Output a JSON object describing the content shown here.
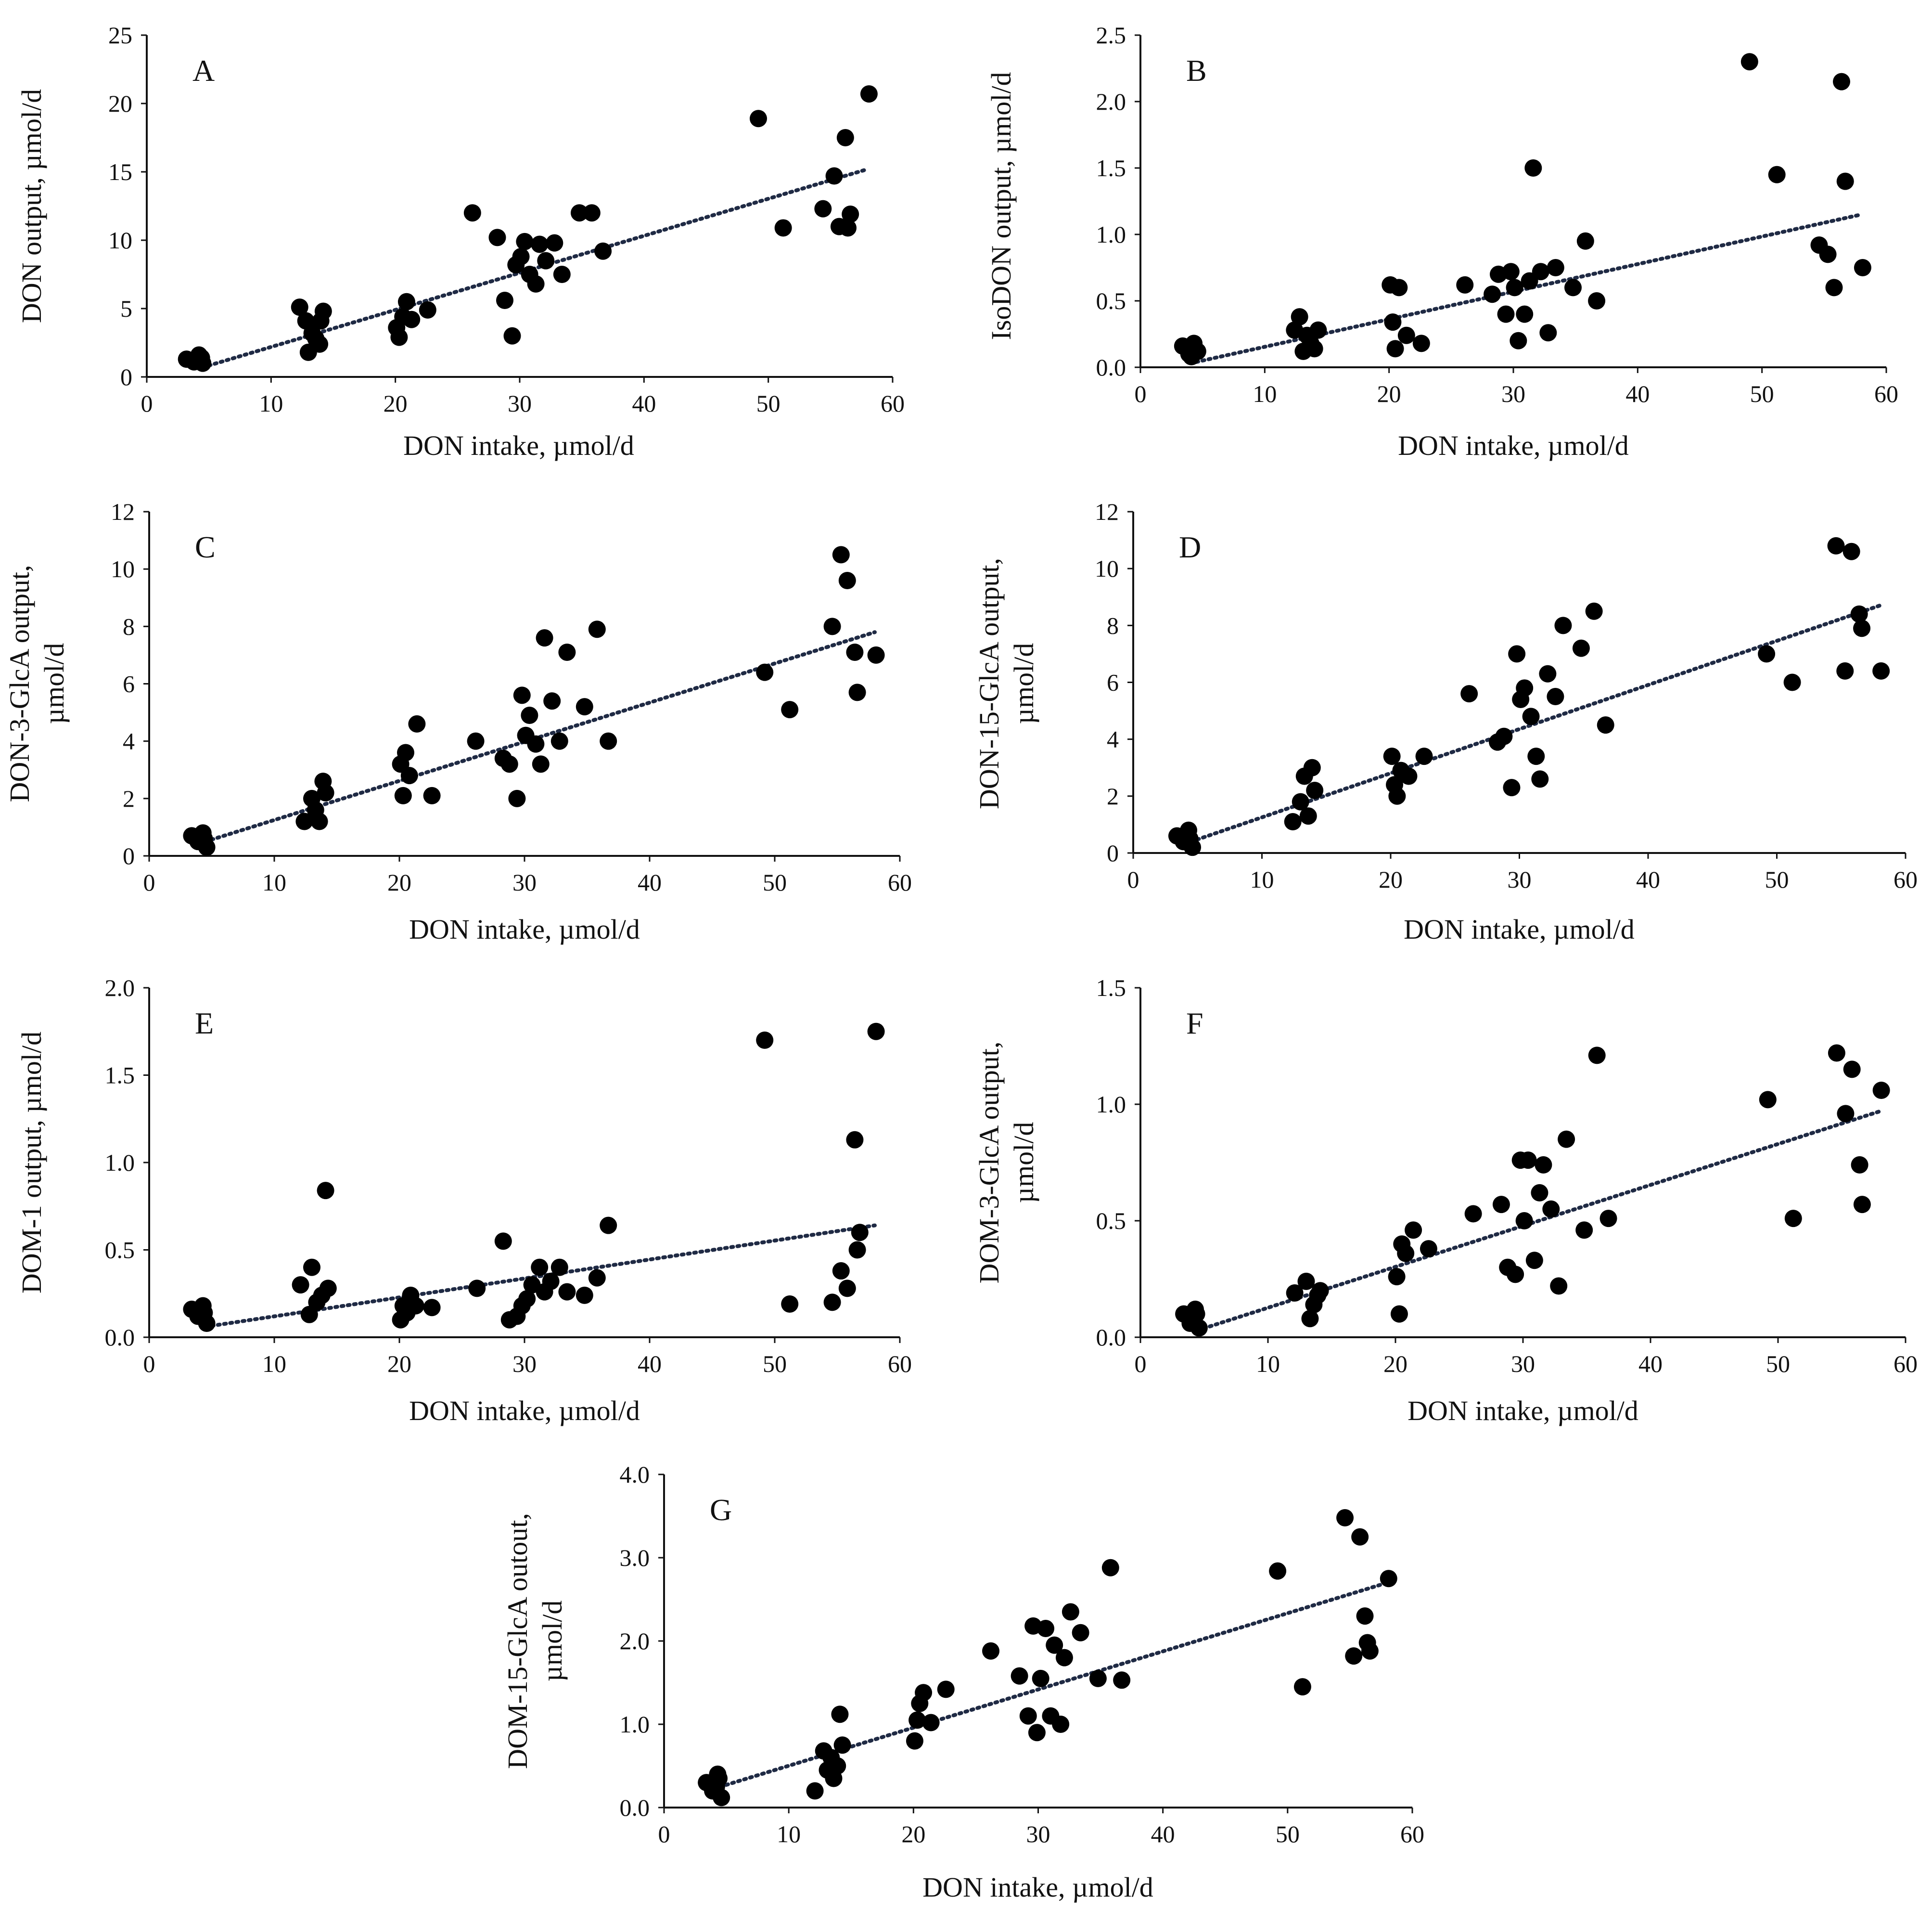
{
  "chart_data": [
    {
      "panel": "A",
      "type": "scatter",
      "xlabel": "DON intake, µmol/d",
      "ylabel": "DON output, µmol/d",
      "xlim": [
        0,
        60
      ],
      "ylim": [
        0,
        25
      ],
      "xticks": [
        "0",
        "10",
        "20",
        "30",
        "40",
        "50",
        "60"
      ],
      "yticks": [
        "0",
        "5",
        "10",
        "15",
        "20",
        "25"
      ],
      "trend": [
        [
          4.5,
          0.7
        ],
        [
          58,
          15.2
        ]
      ],
      "x": [
        3.2,
        3.8,
        4.2,
        4.5,
        4.4,
        4.0,
        12.3,
        12.8,
        13.0,
        13.3,
        13.6,
        13.9,
        14.0,
        14.2,
        20.1,
        20.3,
        20.6,
        20.9,
        21.3,
        22.6,
        26.2,
        28.2,
        28.8,
        29.4,
        29.7,
        30.1,
        30.4,
        30.8,
        31.3,
        31.6,
        32.1,
        32.8,
        33.4,
        34.8,
        35.8,
        36.7,
        49.2,
        51.2,
        54.4,
        55.3,
        55.7,
        56.2,
        56.6,
        56.4,
        58.1
      ],
      "y": [
        1.3,
        1.1,
        1.6,
        1.0,
        1.4,
        1.2,
        5.1,
        4.1,
        1.8,
        3.2,
        2.8,
        2.4,
        4.1,
        4.8,
        3.6,
        2.9,
        4.4,
        5.5,
        4.2,
        4.9,
        12.0,
        10.2,
        5.6,
        3.0,
        8.2,
        8.8,
        9.9,
        7.5,
        6.8,
        9.7,
        8.5,
        9.8,
        7.5,
        12.0,
        12.0,
        9.2,
        18.9,
        10.9,
        12.3,
        14.7,
        11.0,
        17.5,
        11.9,
        10.9,
        20.7
      ]
    },
    {
      "panel": "B",
      "type": "scatter",
      "xlabel": "DON intake, µmol/d",
      "ylabel": "IsoDON output, µmol/d",
      "xlim": [
        0,
        60
      ],
      "ylim": [
        0,
        2.5
      ],
      "xticks": [
        "0",
        "10",
        "20",
        "30",
        "40",
        "50",
        "60"
      ],
      "yticks": [
        "0.0",
        "0.5",
        "1.0",
        "1.5",
        "2.0",
        "2.5"
      ],
      "trend": [
        [
          4.5,
          0.04
        ],
        [
          58,
          1.15
        ]
      ],
      "x": [
        3.4,
        3.9,
        4.3,
        4.6,
        4.4,
        4.1,
        12.4,
        12.8,
        13.1,
        13.4,
        13.7,
        14.0,
        14.3,
        20.1,
        20.3,
        20.5,
        20.8,
        21.4,
        22.6,
        26.1,
        28.3,
        28.8,
        29.4,
        29.8,
        30.1,
        30.4,
        30.9,
        31.3,
        31.6,
        32.2,
        32.8,
        33.4,
        34.8,
        35.8,
        36.7,
        49.0,
        51.2,
        54.6,
        55.3,
        55.8,
        56.4,
        56.7,
        58.1
      ],
      "y": [
        0.16,
        0.1,
        0.18,
        0.12,
        0.14,
        0.08,
        0.28,
        0.38,
        0.12,
        0.24,
        0.18,
        0.14,
        0.28,
        0.62,
        0.34,
        0.14,
        0.6,
        0.24,
        0.18,
        0.62,
        0.55,
        0.7,
        0.4,
        0.72,
        0.6,
        0.2,
        0.4,
        0.65,
        1.5,
        0.72,
        0.26,
        0.75,
        0.6,
        0.95,
        0.5,
        2.3,
        1.45,
        0.92,
        0.85,
        0.6,
        2.15,
        1.4,
        0.75
      ]
    },
    {
      "panel": "C",
      "type": "scatter",
      "xlabel": "DON intake, µmol/d",
      "ylabel": "DON-3-GlcA output, µmol/d",
      "xlim": [
        0,
        60
      ],
      "ylim": [
        0,
        12
      ],
      "xticks": [
        "0",
        "10",
        "20",
        "30",
        "40",
        "50",
        "60"
      ],
      "yticks": [
        "0",
        "2",
        "4",
        "6",
        "8",
        "10",
        "12"
      ],
      "trend": [
        [
          4.5,
          0.5
        ],
        [
          58,
          7.8
        ]
      ],
      "x": [
        3.4,
        3.9,
        4.3,
        4.6,
        4.4,
        12.4,
        13.0,
        13.3,
        13.6,
        13.9,
        14.1,
        20.1,
        20.3,
        20.5,
        20.8,
        21.4,
        22.6,
        26.1,
        28.3,
        28.8,
        29.4,
        29.8,
        30.1,
        30.4,
        30.9,
        31.3,
        31.6,
        32.2,
        32.8,
        33.4,
        34.8,
        35.8,
        36.7,
        49.2,
        51.2,
        54.6,
        55.3,
        55.8,
        56.4,
        56.6,
        58.1
      ],
      "y": [
        0.7,
        0.5,
        0.8,
        0.3,
        0.6,
        1.2,
        2.0,
        1.6,
        1.2,
        2.6,
        2.2,
        3.2,
        2.1,
        3.6,
        2.8,
        4.6,
        2.1,
        4.0,
        3.4,
        3.2,
        2.0,
        5.6,
        4.2,
        4.9,
        3.9,
        3.2,
        7.6,
        5.4,
        4.0,
        7.1,
        5.2,
        7.9,
        4.0,
        6.4,
        5.1,
        8.0,
        10.5,
        9.6,
        7.1,
        5.7,
        7.0
      ]
    },
    {
      "panel": "D",
      "type": "scatter",
      "xlabel": "DON intake, µmol/d",
      "ylabel": "DON-15-GlcA output, µmol/d",
      "xlim": [
        0,
        60
      ],
      "ylim": [
        0,
        12
      ],
      "xticks": [
        "0",
        "10",
        "20",
        "30",
        "40",
        "50",
        "60"
      ],
      "yticks": [
        "0",
        "2",
        "4",
        "6",
        "8",
        "10",
        "12"
      ],
      "trend": [
        [
          4.5,
          0.4
        ],
        [
          58,
          8.7
        ]
      ],
      "x": [
        3.4,
        3.9,
        4.3,
        4.6,
        4.4,
        12.4,
        13.0,
        13.3,
        13.6,
        13.9,
        14.1,
        20.1,
        20.3,
        20.5,
        20.8,
        21.4,
        22.6,
        26.1,
        28.3,
        28.8,
        29.4,
        29.8,
        30.1,
        30.4,
        30.9,
        31.3,
        31.6,
        32.2,
        32.8,
        33.4,
        34.8,
        35.8,
        36.7,
        49.2,
        51.2,
        54.6,
        55.3,
        55.8,
        56.4,
        56.6,
        58.1
      ],
      "y": [
        0.6,
        0.4,
        0.8,
        0.2,
        0.5,
        1.1,
        1.8,
        2.7,
        1.3,
        3.0,
        2.2,
        3.4,
        2.4,
        2.0,
        2.9,
        2.7,
        3.4,
        5.6,
        3.9,
        4.1,
        2.3,
        7.0,
        5.4,
        5.8,
        4.8,
        3.4,
        2.6,
        6.3,
        5.5,
        8.0,
        7.2,
        8.5,
        4.5,
        7.0,
        6.0,
        10.8,
        6.4,
        10.6,
        8.4,
        7.9,
        6.4
      ]
    },
    {
      "panel": "E",
      "type": "scatter",
      "xlabel": "DON intake, µmol/d",
      "ylabel": "DOM-1 output, µmol/d",
      "xlim": [
        0,
        60
      ],
      "ylim": [
        0,
        2
      ],
      "xticks": [
        "0",
        "10",
        "20",
        "30",
        "40",
        "50",
        "60"
      ],
      "yticks": [
        "0.0",
        "0.5",
        "1.0",
        "1.5",
        "2.0"
      ],
      "trend": [
        [
          4.5,
          0.06
        ],
        [
          58,
          0.64
        ]
      ],
      "x": [
        3.4,
        3.9,
        4.3,
        4.6,
        4.4,
        12.1,
        12.8,
        13.0,
        13.4,
        13.8,
        14.1,
        14.3,
        20.1,
        20.3,
        20.6,
        20.9,
        21.3,
        22.6,
        26.2,
        28.3,
        28.8,
        29.4,
        29.8,
        30.2,
        30.6,
        31.2,
        31.6,
        32.1,
        32.8,
        33.4,
        34.8,
        35.8,
        36.7,
        49.2,
        51.2,
        54.6,
        55.3,
        55.8,
        56.4,
        56.6,
        56.8,
        58.1
      ],
      "y": [
        0.16,
        0.12,
        0.18,
        0.08,
        0.14,
        0.3,
        0.13,
        0.4,
        0.2,
        0.24,
        0.84,
        0.28,
        0.1,
        0.18,
        0.14,
        0.24,
        0.18,
        0.17,
        0.28,
        0.55,
        0.1,
        0.12,
        0.18,
        0.22,
        0.3,
        0.4,
        0.26,
        0.32,
        0.4,
        0.26,
        0.24,
        0.34,
        0.64,
        1.7,
        0.19,
        0.2,
        0.38,
        0.28,
        1.13,
        0.5,
        0.6,
        1.75
      ]
    },
    {
      "panel": "F",
      "type": "scatter",
      "xlabel": "DON intake, µmol/d",
      "ylabel": "DOM-3-GlcA output, µmol/d",
      "xlim": [
        0,
        60
      ],
      "ylim": [
        0,
        1.5
      ],
      "xticks": [
        "0",
        "10",
        "20",
        "30",
        "40",
        "50",
        "60"
      ],
      "yticks": [
        "0.0",
        "0.5",
        "1.0",
        "1.5"
      ],
      "trend": [
        [
          4.5,
          0.03
        ],
        [
          58,
          0.97
        ]
      ],
      "x": [
        3.4,
        3.9,
        4.3,
        4.6,
        4.4,
        12.1,
        13.0,
        13.3,
        13.6,
        13.9,
        14.1,
        20.1,
        20.3,
        20.5,
        20.8,
        21.4,
        22.6,
        26.1,
        28.3,
        28.8,
        29.4,
        29.8,
        30.1,
        30.4,
        30.9,
        31.3,
        31.6,
        32.2,
        32.8,
        33.4,
        34.8,
        35.8,
        36.7,
        49.2,
        51.2,
        54.6,
        55.3,
        55.8,
        56.4,
        56.6,
        58.1
      ],
      "y": [
        0.1,
        0.06,
        0.12,
        0.04,
        0.1,
        0.19,
        0.24,
        0.08,
        0.14,
        0.18,
        0.2,
        0.26,
        0.1,
        0.4,
        0.36,
        0.46,
        0.38,
        0.53,
        0.57,
        0.3,
        0.27,
        0.76,
        0.5,
        0.76,
        0.33,
        0.62,
        0.74,
        0.55,
        0.22,
        0.85,
        0.46,
        1.21,
        0.51,
        1.02,
        0.51,
        1.22,
        0.96,
        1.15,
        0.74,
        0.57,
        1.06
      ]
    },
    {
      "panel": "G",
      "type": "scatter",
      "xlabel": "DON intake, µmol/d",
      "ylabel": "DOM-15-GlcA outout, µmol/d",
      "xlim": [
        0,
        60
      ],
      "ylim": [
        0,
        4
      ],
      "xticks": [
        "0",
        "10",
        "20",
        "30",
        "40",
        "50",
        "60"
      ],
      "yticks": [
        "0.0",
        "1.0",
        "2.0",
        "3.0",
        "4.0"
      ],
      "trend": [
        [
          4.5,
          0.25
        ],
        [
          58,
          2.7
        ]
      ],
      "x": [
        3.4,
        3.9,
        4.3,
        4.6,
        4.4,
        4.2,
        12.1,
        12.8,
        13.1,
        13.4,
        13.6,
        13.9,
        14.1,
        14.3,
        20.1,
        20.3,
        20.5,
        20.8,
        21.4,
        22.6,
        26.2,
        28.5,
        29.2,
        29.6,
        29.9,
        30.2,
        30.6,
        31.0,
        31.3,
        31.8,
        32.1,
        32.6,
        33.4,
        34.8,
        35.8,
        36.7,
        49.2,
        51.2,
        54.6,
        55.3,
        55.8,
        56.2,
        56.4,
        56.6,
        58.1
      ],
      "y": [
        0.3,
        0.2,
        0.4,
        0.12,
        0.35,
        0.25,
        0.2,
        0.68,
        0.45,
        0.6,
        0.35,
        0.5,
        1.12,
        0.75,
        0.8,
        1.05,
        1.25,
        1.38,
        1.02,
        1.42,
        1.88,
        1.58,
        1.1,
        2.18,
        0.9,
        1.55,
        2.15,
        1.1,
        1.95,
        1.0,
        1.8,
        2.35,
        2.1,
        1.55,
        2.88,
        1.53,
        2.84,
        1.45,
        3.48,
        1.82,
        3.25,
        2.3,
        1.98,
        1.88,
        2.75
      ]
    }
  ]
}
